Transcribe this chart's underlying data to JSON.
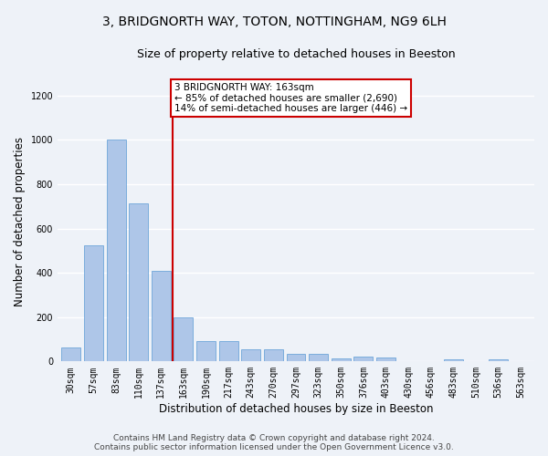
{
  "title": "3, BRIDGNORTH WAY, TOTON, NOTTINGHAM, NG9 6LH",
  "subtitle": "Size of property relative to detached houses in Beeston",
  "xlabel": "Distribution of detached houses by size in Beeston",
  "ylabel": "Number of detached properties",
  "categories": [
    "30sqm",
    "57sqm",
    "83sqm",
    "110sqm",
    "137sqm",
    "163sqm",
    "190sqm",
    "217sqm",
    "243sqm",
    "270sqm",
    "297sqm",
    "323sqm",
    "350sqm",
    "376sqm",
    "403sqm",
    "430sqm",
    "456sqm",
    "483sqm",
    "510sqm",
    "536sqm",
    "563sqm"
  ],
  "values": [
    65,
    525,
    1000,
    715,
    410,
    200,
    90,
    90,
    55,
    55,
    35,
    35,
    15,
    20,
    18,
    2,
    2,
    10,
    2,
    10,
    2
  ],
  "bar_color": "#aec6e8",
  "bar_edgecolor": "#5b9bd5",
  "vline_color": "#cc0000",
  "vline_index": 5,
  "annotation_text": "3 BRIDGNORTH WAY: 163sqm\n← 85% of detached houses are smaller (2,690)\n14% of semi-detached houses are larger (446) →",
  "annotation_box_edgecolor": "#cc0000",
  "ylim": [
    0,
    1260
  ],
  "yticks": [
    0,
    200,
    400,
    600,
    800,
    1000,
    1200
  ],
  "footer_line1": "Contains HM Land Registry data © Crown copyright and database right 2024.",
  "footer_line2": "Contains public sector information licensed under the Open Government Licence v3.0.",
  "bg_color": "#eef2f8",
  "grid_color": "#ffffff",
  "title_fontsize": 10,
  "subtitle_fontsize": 9,
  "axis_label_fontsize": 8.5,
  "tick_fontsize": 7,
  "footer_fontsize": 6.5
}
